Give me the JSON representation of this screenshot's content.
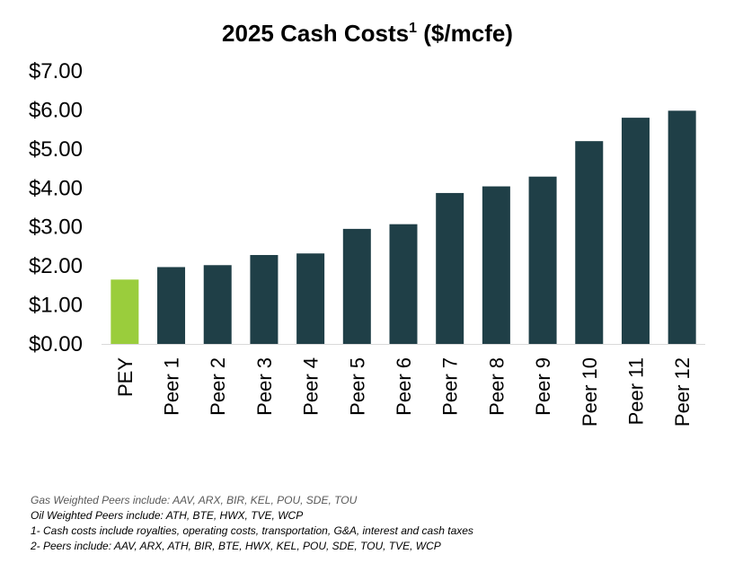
{
  "chart_data": {
    "type": "bar",
    "title": "2025 Cash Costs",
    "title_superscript": "1",
    "title_suffix": " ($/mcfe)",
    "categories": [
      "PEY",
      "Peer 1",
      "Peer 2",
      "Peer 3",
      "Peer 4",
      "Peer 5",
      "Peer 6",
      "Peer 7",
      "Peer 8",
      "Peer 9",
      "Peer 10",
      "Peer 11",
      "Peer 12"
    ],
    "values": [
      1.65,
      1.97,
      2.02,
      2.28,
      2.32,
      2.95,
      3.07,
      3.87,
      4.04,
      4.29,
      5.2,
      5.8,
      5.98
    ],
    "highlight_index": 0,
    "colors": {
      "highlight": "#9ACD3C",
      "default": "#1F3F47",
      "axis": "#D9D9D9"
    },
    "ylim": [
      0,
      7
    ],
    "yticks": [
      0,
      1,
      2,
      3,
      4,
      5,
      6,
      7
    ],
    "ytick_labels": [
      "$0.00",
      "$1.00",
      "$2.00",
      "$3.00",
      "$4.00",
      "$5.00",
      "$6.00",
      "$7.00"
    ],
    "xlabel": "",
    "ylabel": "",
    "grid": false,
    "legend": "none"
  },
  "footnotes": {
    "gas_peers": "Gas Weighted Peers include: AAV, ARX, BIR, KEL, POU, SDE, TOU",
    "oil_peers": "Oil Weighted Peers include: ATH, BTE, HWX, TVE, WCP",
    "note_1": "1- Cash costs include royalties, operating costs, transportation, G&A, interest and cash taxes",
    "note_2": "2- Peers include: AAV, ARX, ATH, BIR, BTE, HWX, KEL, POU, SDE, TOU, TVE, WCP"
  }
}
